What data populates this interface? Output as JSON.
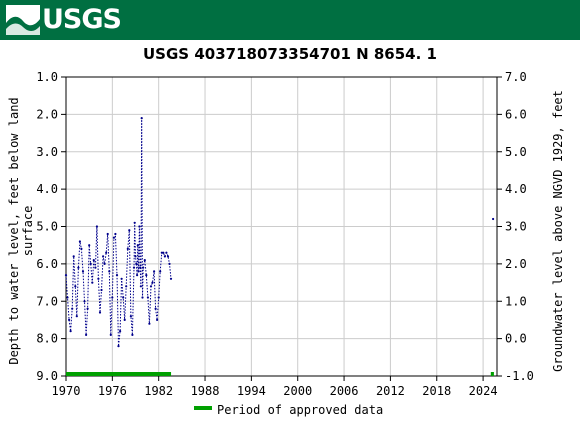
{
  "header": {
    "logo_text": "USGS",
    "logo_icon": "usgs-wave-icon",
    "background_color": "#006f41"
  },
  "chart_data": {
    "type": "scatter",
    "title": "USGS 403718073354701 N  8654. 1",
    "ylabel_left": "Depth to water level, feet below land surface",
    "ylabel_left_lines": [
      "Depth to water level, feet below land",
      "surface"
    ],
    "ylabel_right": "Groundwater level above NGVD 1929, feet",
    "x_ticks": [
      "1970",
      "1976",
      "1982",
      "1988",
      "1994",
      "2000",
      "2006",
      "2012",
      "2018",
      "2024"
    ],
    "x_range": [
      1970,
      2025.8
    ],
    "y_left_ticks": [
      "1.0",
      "2.0",
      "3.0",
      "4.0",
      "5.0",
      "6.0",
      "7.0",
      "8.0",
      "9.0"
    ],
    "y_left_range": [
      1.0,
      9.0
    ],
    "y_left_inverted": true,
    "y_right_ticks": [
      "7.0",
      "6.0",
      "5.0",
      "4.0",
      "3.0",
      "2.0",
      "1.0",
      "0.0",
      "-1.0"
    ],
    "y_right_range": [
      7.0,
      -1.0
    ],
    "grid": true,
    "series_color": "#00008b",
    "series": [
      {
        "points": [
          [
            1970.0,
            6.3
          ],
          [
            1970.2,
            6.9
          ],
          [
            1970.4,
            7.5
          ],
          [
            1970.6,
            7.8
          ],
          [
            1970.8,
            7.2
          ],
          [
            1971.0,
            5.8
          ],
          [
            1971.2,
            6.6
          ],
          [
            1971.4,
            7.4
          ],
          [
            1971.6,
            6.1
          ],
          [
            1971.8,
            5.4
          ],
          [
            1972.0,
            5.6
          ],
          [
            1972.2,
            6.2
          ],
          [
            1972.4,
            7.0
          ],
          [
            1972.6,
            7.9
          ],
          [
            1972.8,
            7.2
          ],
          [
            1973.0,
            5.5
          ],
          [
            1973.2,
            6.0
          ],
          [
            1973.4,
            6.5
          ],
          [
            1973.6,
            5.9
          ],
          [
            1973.8,
            6.1
          ],
          [
            1974.0,
            5.0
          ],
          [
            1974.2,
            6.4
          ],
          [
            1974.4,
            7.3
          ],
          [
            1974.6,
            6.7
          ],
          [
            1974.8,
            5.8
          ],
          [
            1975.0,
            6.0
          ],
          [
            1975.2,
            5.7
          ],
          [
            1975.4,
            5.2
          ],
          [
            1975.6,
            6.2
          ],
          [
            1975.8,
            7.9
          ],
          [
            1976.0,
            6.9
          ],
          [
            1976.2,
            5.3
          ],
          [
            1976.4,
            5.2
          ],
          [
            1976.6,
            6.3
          ],
          [
            1976.8,
            8.2
          ],
          [
            1977.0,
            7.8
          ],
          [
            1977.2,
            6.4
          ],
          [
            1977.4,
            6.9
          ],
          [
            1977.6,
            7.5
          ],
          [
            1977.8,
            6.6
          ],
          [
            1978.0,
            5.6
          ],
          [
            1978.2,
            5.1
          ],
          [
            1978.4,
            7.4
          ],
          [
            1978.6,
            7.9
          ],
          [
            1978.8,
            6.1
          ],
          [
            1978.9,
            4.9
          ],
          [
            1979.0,
            5.8
          ],
          [
            1979.1,
            6.0
          ],
          [
            1979.2,
            6.3
          ],
          [
            1979.3,
            5.5
          ],
          [
            1979.4,
            6.2
          ],
          [
            1979.5,
            5.0
          ],
          [
            1979.6,
            6.1
          ],
          [
            1979.7,
            6.6
          ],
          [
            1979.8,
            2.1
          ],
          [
            1979.9,
            6.9
          ],
          [
            1980.0,
            6.1
          ],
          [
            1980.2,
            5.9
          ],
          [
            1980.4,
            6.3
          ],
          [
            1980.6,
            6.9
          ],
          [
            1980.8,
            7.6
          ],
          [
            1981.0,
            6.6
          ],
          [
            1981.2,
            6.5
          ],
          [
            1981.4,
            6.2
          ],
          [
            1981.6,
            7.2
          ],
          [
            1981.8,
            7.5
          ],
          [
            1982.0,
            6.9
          ],
          [
            1982.2,
            6.2
          ],
          [
            1982.4,
            5.7
          ],
          [
            1982.6,
            5.7
          ],
          [
            1982.8,
            5.8
          ],
          [
            1983.0,
            5.7
          ],
          [
            1983.2,
            5.8
          ],
          [
            1983.4,
            6.0
          ],
          [
            1983.6,
            6.4
          ],
          [
            2025.3,
            4.8
          ]
        ]
      }
    ],
    "approved_periods": [
      [
        1970.0,
        1983.6
      ],
      [
        2025.0,
        2025.4
      ]
    ],
    "approved_color": "#00a000",
    "legend_label": "Period of approved data",
    "legend_position": "bottom-center"
  }
}
